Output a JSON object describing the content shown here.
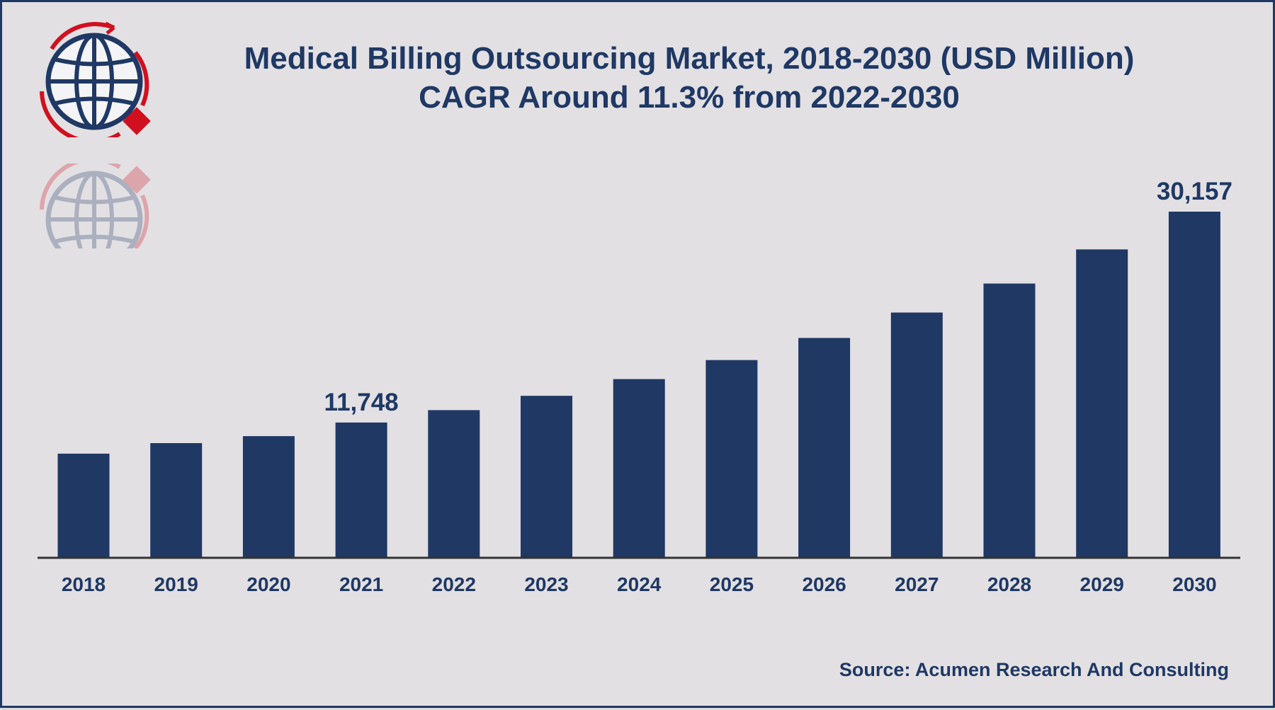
{
  "chart_data": {
    "type": "bar",
    "title": "Medical Billing Outsourcing Market, 2018-2030 (USD Million)",
    "subtitle": "CAGR Around 11.3% from 2022-2030",
    "xlabel": "",
    "ylabel": "",
    "categories": [
      "2018",
      "2019",
      "2020",
      "2021",
      "2022",
      "2023",
      "2024",
      "2025",
      "2026",
      "2027",
      "2028",
      "2029",
      "2030"
    ],
    "values": [
      9030,
      9950,
      10560,
      11748,
      12830,
      14080,
      15540,
      17200,
      19130,
      21350,
      23880,
      26860,
      30157
    ],
    "data_labels": [
      {
        "category": "2021",
        "text": "11,748"
      },
      {
        "category": "2030",
        "text": "30,157"
      }
    ],
    "ylim": [
      0,
      30157
    ],
    "bar_color": "#1f3864",
    "grid": false,
    "legend": "none"
  },
  "source": "Source: Acumen Research And Consulting",
  "colors": {
    "primary": "#1f3864",
    "accent": "#d0101f",
    "background": "#e2e0e3"
  }
}
